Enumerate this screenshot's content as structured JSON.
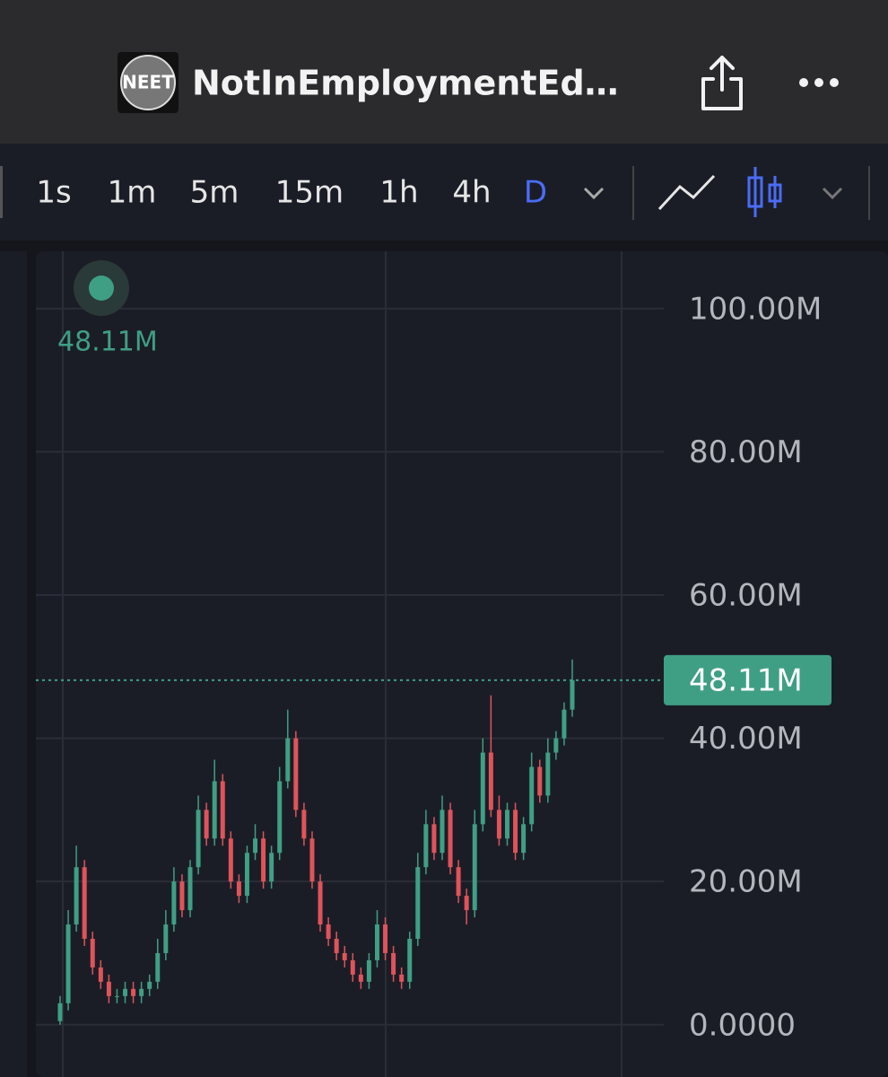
{
  "header": {
    "logo": "NEET",
    "title": "NotInEmploymentEd…"
  },
  "toolbar": {
    "intervals": [
      "1s",
      "1m",
      "5m",
      "15m",
      "1h",
      "4h",
      "D"
    ],
    "active_interval_index": 6
  },
  "chart_data": {
    "type": "candlestick",
    "ylim": [
      -7.3,
      108
    ],
    "yticks": [
      {
        "value": 0,
        "label": "0.0000"
      },
      {
        "value": 20,
        "label": "20.00M"
      },
      {
        "value": 40,
        "label": "40.00M"
      },
      {
        "value": 60,
        "label": "60.00M"
      },
      {
        "value": 80,
        "label": "80.00M"
      },
      {
        "value": 100,
        "label": "100.00M"
      }
    ],
    "grid": true,
    "up_color": "#3f9f84",
    "down_color": "#e0535a",
    "last_price": {
      "value": 48.11,
      "label": "48.11M"
    },
    "open": [
      0.5,
      3,
      14,
      22,
      12,
      8,
      6,
      4,
      4,
      5,
      4,
      5,
      6,
      10,
      14,
      20,
      16,
      22,
      30,
      26,
      34,
      26,
      20,
      18,
      24,
      26,
      20,
      24,
      34,
      40,
      30,
      26,
      20,
      14,
      12,
      10,
      9,
      7,
      6,
      9,
      14,
      10,
      7,
      6,
      12,
      22,
      28,
      24,
      30,
      22,
      18,
      16,
      28,
      38,
      30,
      26,
      30,
      24,
      28,
      36,
      32,
      38,
      40,
      44
    ],
    "high": [
      4,
      16,
      25,
      23,
      13,
      9,
      7,
      5,
      6,
      6,
      6,
      7,
      12,
      16,
      22,
      21,
      23,
      32,
      31,
      37,
      35,
      27,
      21,
      25,
      28,
      27,
      25,
      36,
      44,
      41,
      31,
      27,
      21,
      15,
      13,
      11,
      10,
      8,
      10,
      16,
      15,
      11,
      8,
      13,
      24,
      30,
      29,
      32,
      31,
      23,
      19,
      30,
      40,
      46,
      32,
      31,
      31,
      29,
      38,
      37,
      40,
      41,
      45,
      51
    ],
    "low": [
      0,
      2,
      13,
      11,
      7,
      5,
      3,
      3,
      3,
      3,
      3,
      4,
      5,
      9,
      13,
      15,
      15,
      21,
      25,
      25,
      25,
      19,
      17,
      17,
      23,
      19,
      19,
      23,
      33,
      29,
      25,
      19,
      13,
      11,
      9,
      8,
      6,
      5,
      5,
      8,
      9,
      6,
      5,
      5,
      11,
      21,
      23,
      23,
      21,
      17,
      14,
      15,
      27,
      29,
      25,
      25,
      23,
      23,
      27,
      31,
      31,
      37,
      39,
      43
    ],
    "close": [
      3,
      14,
      22,
      12,
      8,
      6,
      4,
      4,
      5,
      4,
      5,
      6,
      10,
      14,
      20,
      16,
      22,
      30,
      26,
      34,
      26,
      20,
      18,
      24,
      26,
      20,
      24,
      34,
      40,
      30,
      26,
      20,
      14,
      12,
      10,
      9,
      7,
      6,
      9,
      14,
      10,
      7,
      6,
      12,
      22,
      28,
      24,
      30,
      22,
      18,
      16,
      28,
      38,
      30,
      26,
      30,
      24,
      28,
      36,
      32,
      38,
      40,
      44,
      48.11
    ]
  }
}
